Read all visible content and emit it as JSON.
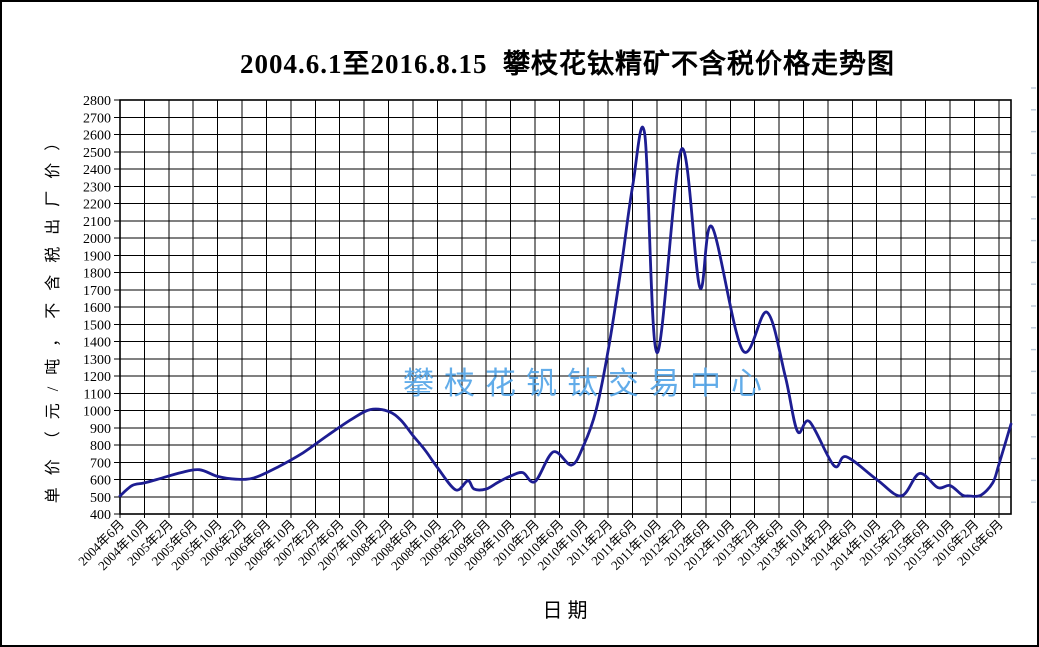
{
  "chart": {
    "title": "2004.6.1至2016.8.15  攀枝花钛精矿不含税价格走势图",
    "y_axis_title": "单价（元/吨，不含税出厂价）",
    "x_axis_title": "日期",
    "watermark": "攀枝花钒钛交易中心"
  },
  "chart_data": {
    "type": "line",
    "title": "2004.6.1至2016.8.15  攀枝花钛精矿不含税价格走势图",
    "xlabel": "日期",
    "ylabel": "单价（元/吨，不含税出厂价）",
    "ylim": [
      400,
      2800
    ],
    "y_tick_step": 100,
    "x_range_months": [
      "2004-06",
      "2016-08"
    ],
    "x_tick_interval_months": 4,
    "grid": true,
    "legend": "none",
    "line_color": "#1d1d92",
    "grid_color": "#000000",
    "watermark_color": "#55a6e8",
    "x_tick_labels": [
      "2004年6月",
      "2004年10月",
      "2005年2月",
      "2005年6月",
      "2005年10月",
      "2006年2月",
      "2006年6月",
      "2006年10月",
      "2007年2月",
      "2007年6月",
      "2007年10月",
      "2008年2月",
      "2008年6月",
      "2008年10月",
      "2009年2月",
      "2009年6月",
      "2009年10月",
      "2010年2月",
      "2010年6月",
      "2010年10月",
      "2011年2月",
      "2011年6月",
      "2011年10月",
      "2012年2月",
      "2012年6月",
      "2012年10月",
      "2013年2月",
      "2013年6月",
      "2013年10月",
      "2014年2月",
      "2014年6月",
      "2014年10月",
      "2015年2月",
      "2015年6月",
      "2015年10月",
      "2016年2月",
      "2016年6月"
    ],
    "series": [
      {
        "points": [
          [
            "2004-06",
            505
          ],
          [
            "2004-08",
            565
          ],
          [
            "2004-10",
            580
          ],
          [
            "2005-01",
            610
          ],
          [
            "2005-04",
            640
          ],
          [
            "2005-07",
            657
          ],
          [
            "2005-10",
            618
          ],
          [
            "2006-01",
            602
          ],
          [
            "2006-04",
            610
          ],
          [
            "2006-08",
            675
          ],
          [
            "2006-12",
            755
          ],
          [
            "2007-04",
            855
          ],
          [
            "2007-08",
            950
          ],
          [
            "2007-11",
            1005
          ],
          [
            "2008-02",
            995
          ],
          [
            "2008-04",
            945
          ],
          [
            "2008-06",
            855
          ],
          [
            "2008-08",
            770
          ],
          [
            "2008-10",
            670
          ],
          [
            "2009-01",
            540
          ],
          [
            "2009-03",
            593
          ],
          [
            "2009-04",
            545
          ],
          [
            "2009-06",
            545
          ],
          [
            "2009-08",
            585
          ],
          [
            "2009-10",
            620
          ],
          [
            "2009-12",
            640
          ],
          [
            "2010-02",
            588
          ],
          [
            "2010-05",
            760
          ],
          [
            "2010-08",
            684
          ],
          [
            "2010-10",
            800
          ],
          [
            "2010-12",
            1000
          ],
          [
            "2011-02",
            1350
          ],
          [
            "2011-04",
            1800
          ],
          [
            "2011-06",
            2300
          ],
          [
            "2011-08",
            2600
          ],
          [
            "2011-10",
            1335
          ],
          [
            "2012-02",
            2515
          ],
          [
            "2012-05",
            1715
          ],
          [
            "2012-07",
            2065
          ],
          [
            "2012-12",
            1350
          ],
          [
            "2013-04",
            1570
          ],
          [
            "2013-07",
            1200
          ],
          [
            "2013-09",
            880
          ],
          [
            "2013-11",
            935
          ],
          [
            "2014-03",
            680
          ],
          [
            "2014-05",
            732
          ],
          [
            "2014-10",
            600
          ],
          [
            "2015-02",
            505
          ],
          [
            "2015-05",
            635
          ],
          [
            "2015-08",
            553
          ],
          [
            "2015-10",
            565
          ],
          [
            "2015-12",
            510
          ],
          [
            "2016-01",
            505
          ],
          [
            "2016-03",
            508
          ],
          [
            "2016-05",
            580
          ],
          [
            "2016-06",
            685
          ],
          [
            "2016-08",
            922
          ]
        ]
      }
    ]
  }
}
